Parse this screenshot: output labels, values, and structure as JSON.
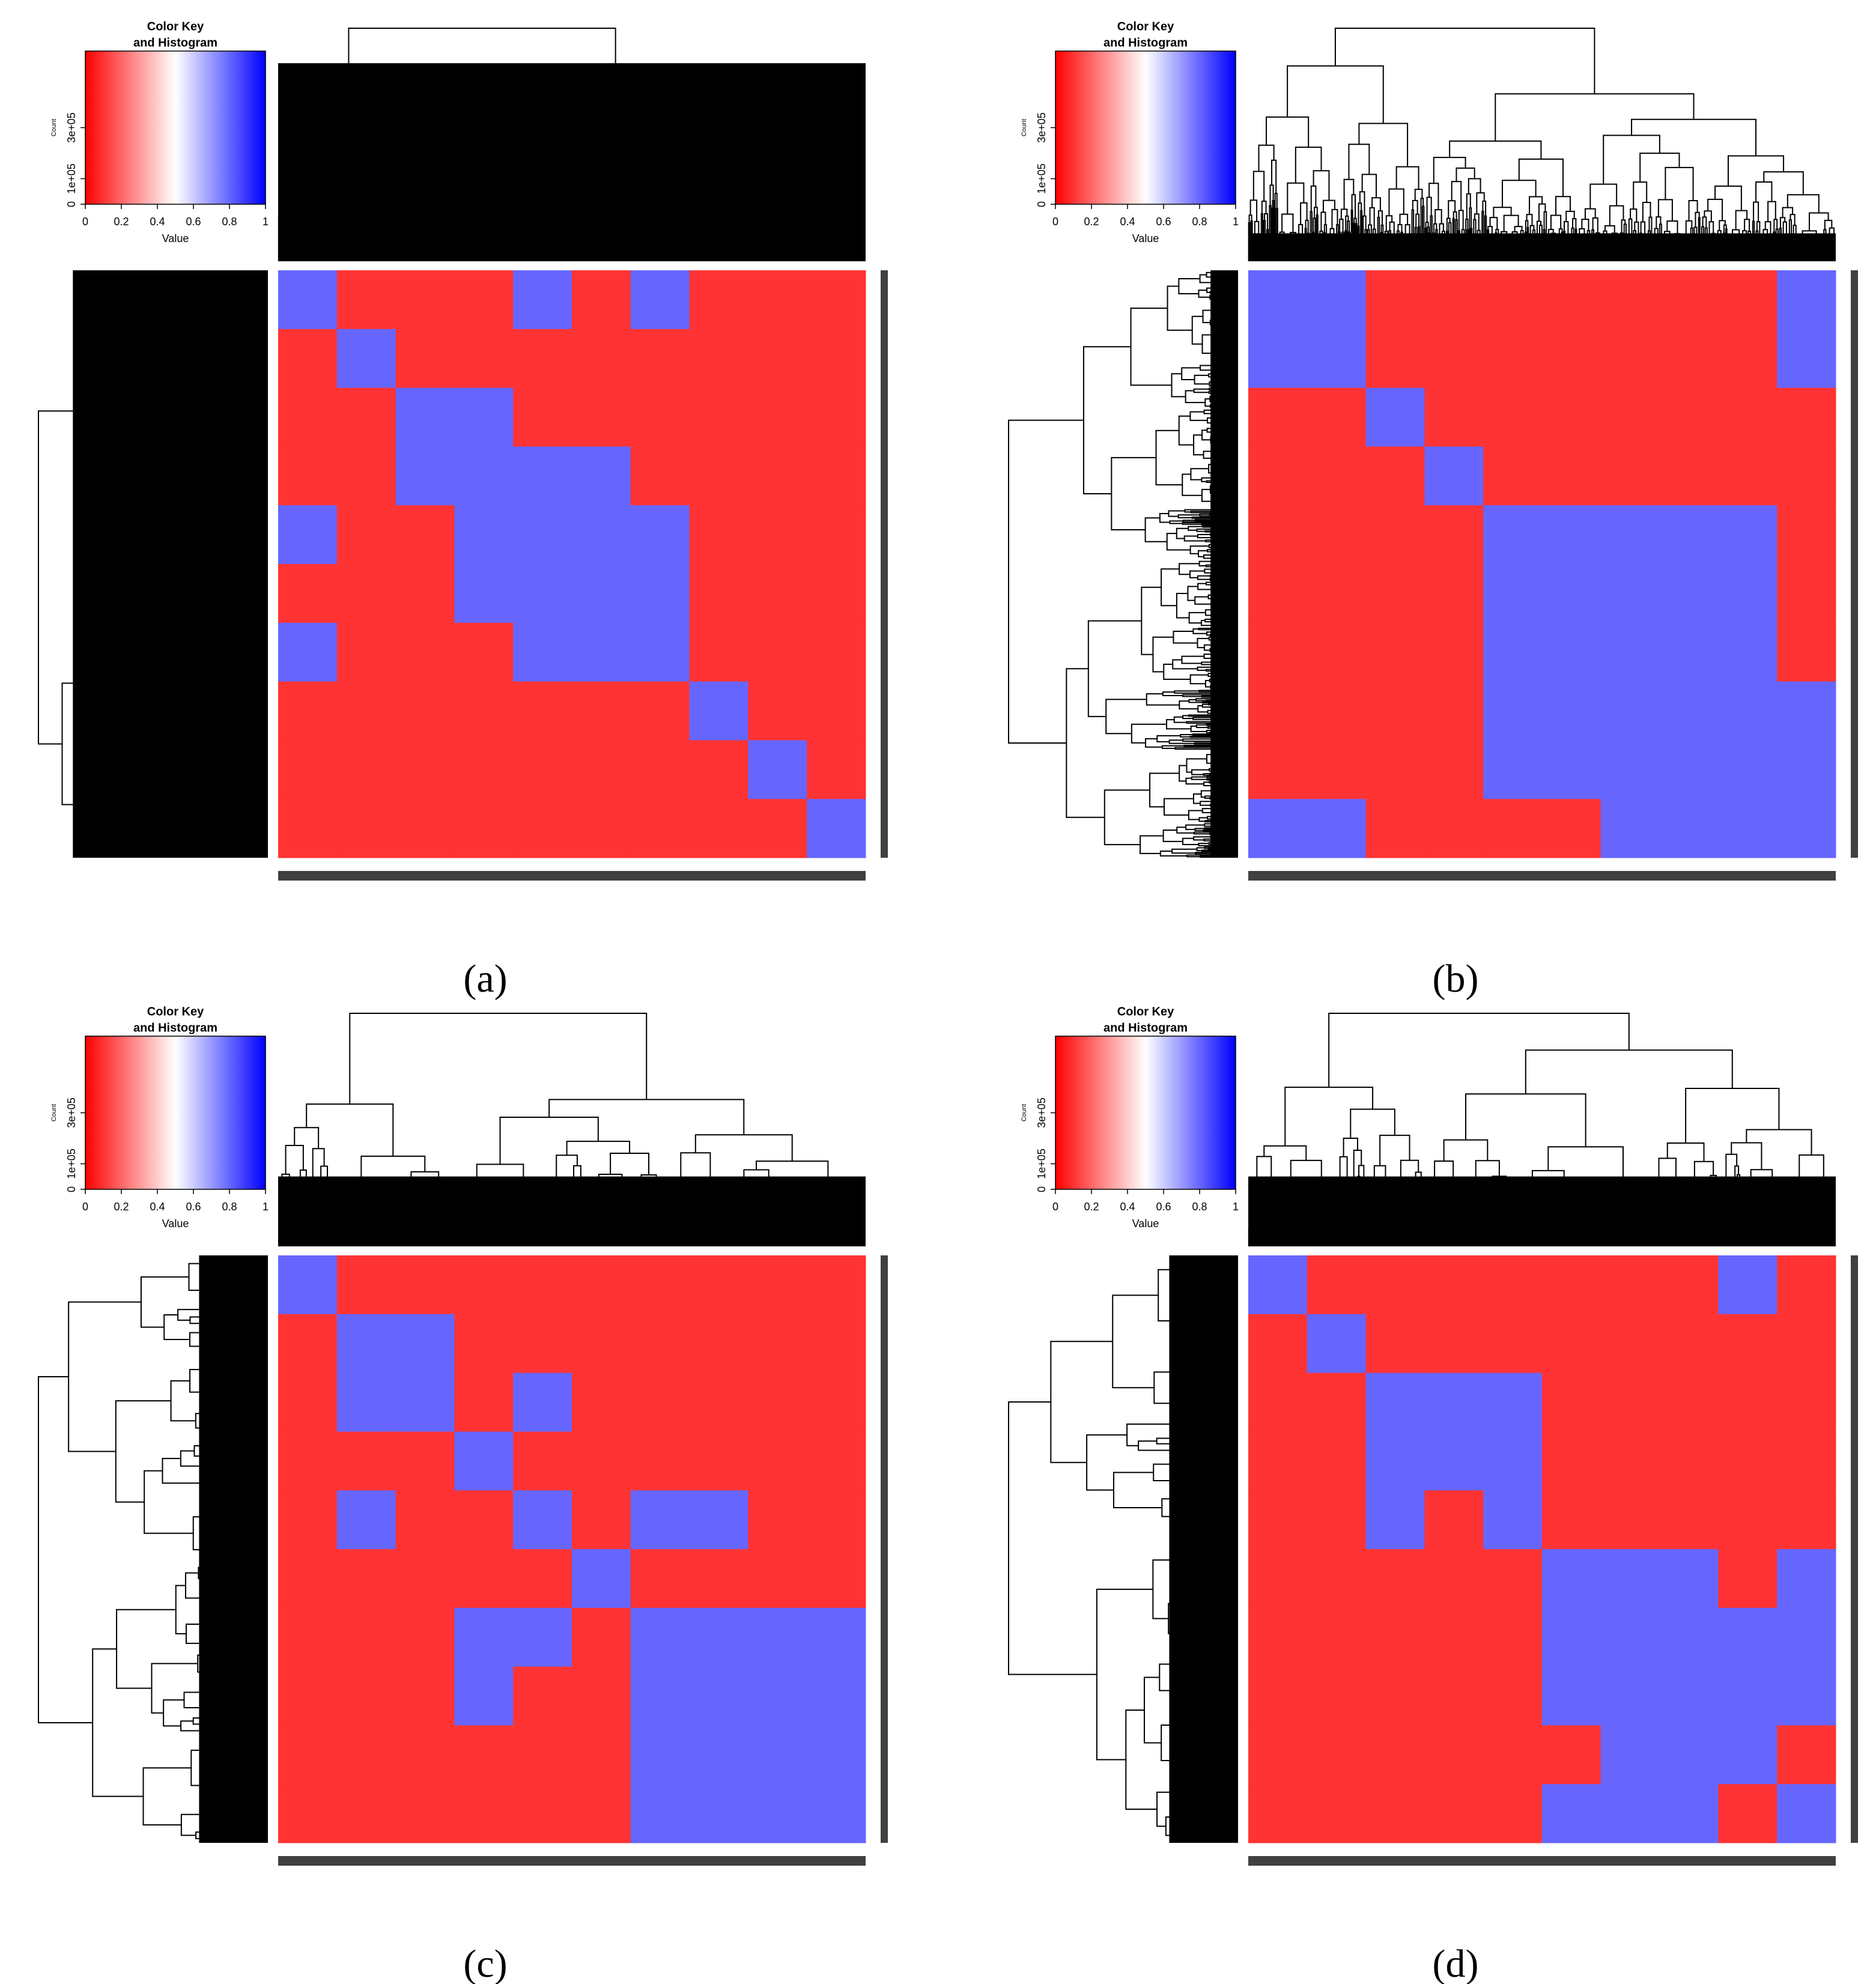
{
  "chart_data": [
    {
      "type": "heatmap",
      "label": "(a)",
      "title": [
        "Color Key",
        "and Histogram"
      ],
      "xlabel": "Value",
      "ylabel": "Count",
      "xlim": [
        0,
        1
      ],
      "xticks": [
        0,
        0.2,
        0.4,
        0.6,
        0.8,
        1
      ],
      "ylim": [
        0,
        600000
      ],
      "yticks": [
        0,
        {
          "value": 100000,
          "label": "1e+05"
        },
        {
          "value": 300000,
          "label": "3e+05"
        }
      ],
      "colors": [
        "#ff0000",
        "#ffffff",
        "#0000ff"
      ],
      "values": [
        [
          0.8,
          0.1,
          0.1,
          0.1,
          0.8,
          0.1,
          0.8,
          0.1,
          0.1,
          0.1
        ],
        [
          0.1,
          0.8,
          0.1,
          0.1,
          0.1,
          0.1,
          0.1,
          0.1,
          0.1,
          0.1
        ],
        [
          0.1,
          0.1,
          0.8,
          0.8,
          0.1,
          0.1,
          0.1,
          0.1,
          0.1,
          0.1
        ],
        [
          0.1,
          0.1,
          0.8,
          0.8,
          0.8,
          0.8,
          0.1,
          0.1,
          0.1,
          0.1
        ],
        [
          0.8,
          0.1,
          0.1,
          0.8,
          0.8,
          0.8,
          0.8,
          0.1,
          0.1,
          0.1
        ],
        [
          0.1,
          0.1,
          0.1,
          0.8,
          0.8,
          0.8,
          0.8,
          0.1,
          0.1,
          0.1
        ],
        [
          0.8,
          0.1,
          0.1,
          0.1,
          0.8,
          0.8,
          0.8,
          0.1,
          0.1,
          0.1
        ],
        [
          0.1,
          0.1,
          0.1,
          0.1,
          0.1,
          0.1,
          0.1,
          0.8,
          0.1,
          0.1
        ],
        [
          0.1,
          0.1,
          0.1,
          0.1,
          0.1,
          0.1,
          0.1,
          0.1,
          0.8,
          0.1
        ],
        [
          0.1,
          0.1,
          0.1,
          0.1,
          0.1,
          0.1,
          0.1,
          0.1,
          0.1,
          0.8
        ]
      ]
    },
    {
      "type": "heatmap",
      "label": "(b)",
      "title": [
        "Color Key",
        "and Histogram"
      ],
      "xlabel": "Value",
      "ylabel": "Count",
      "xlim": [
        0,
        1
      ],
      "xticks": [
        0,
        0.2,
        0.4,
        0.6,
        0.8,
        1
      ],
      "ylim": [
        0,
        600000
      ],
      "yticks": [
        0,
        {
          "value": 100000,
          "label": "1e+05"
        },
        {
          "value": 300000,
          "label": "3e+05"
        }
      ],
      "colors": [
        "#ff0000",
        "#ffffff",
        "#0000ff"
      ],
      "values": [
        [
          0.8,
          0.8,
          0.1,
          0.1,
          0.1,
          0.1,
          0.1,
          0.1,
          0.1,
          0.8
        ],
        [
          0.8,
          0.8,
          0.1,
          0.1,
          0.1,
          0.1,
          0.1,
          0.1,
          0.1,
          0.8
        ],
        [
          0.1,
          0.1,
          0.8,
          0.1,
          0.1,
          0.1,
          0.1,
          0.1,
          0.1,
          0.1
        ],
        [
          0.1,
          0.1,
          0.1,
          0.8,
          0.1,
          0.1,
          0.1,
          0.1,
          0.1,
          0.1
        ],
        [
          0.1,
          0.1,
          0.1,
          0.1,
          0.8,
          0.8,
          0.8,
          0.8,
          0.8,
          0.1
        ],
        [
          0.1,
          0.1,
          0.1,
          0.1,
          0.8,
          0.8,
          0.8,
          0.8,
          0.8,
          0.1
        ],
        [
          0.1,
          0.1,
          0.1,
          0.1,
          0.8,
          0.8,
          0.8,
          0.8,
          0.8,
          0.1
        ],
        [
          0.1,
          0.1,
          0.1,
          0.1,
          0.8,
          0.8,
          0.8,
          0.8,
          0.8,
          0.8
        ],
        [
          0.1,
          0.1,
          0.1,
          0.1,
          0.8,
          0.8,
          0.8,
          0.8,
          0.8,
          0.8
        ],
        [
          0.8,
          0.8,
          0.1,
          0.1,
          0.1,
          0.1,
          0.8,
          0.8,
          0.8,
          0.8
        ]
      ]
    },
    {
      "type": "heatmap",
      "label": "(c)",
      "title": [
        "Color Key",
        "and Histogram"
      ],
      "xlabel": "Value",
      "ylabel": "Count",
      "xlim": [
        0,
        1
      ],
      "xticks": [
        0,
        0.2,
        0.4,
        0.6,
        0.8,
        1
      ],
      "ylim": [
        0,
        600000
      ],
      "yticks": [
        0,
        {
          "value": 100000,
          "label": "1e+05"
        },
        {
          "value": 300000,
          "label": "3e+05"
        }
      ],
      "colors": [
        "#ff0000",
        "#ffffff",
        "#0000ff"
      ],
      "values": [
        [
          0.8,
          0.1,
          0.1,
          0.1,
          0.1,
          0.1,
          0.1,
          0.1,
          0.1,
          0.1
        ],
        [
          0.1,
          0.8,
          0.8,
          0.1,
          0.1,
          0.1,
          0.1,
          0.1,
          0.1,
          0.1
        ],
        [
          0.1,
          0.8,
          0.8,
          0.1,
          0.8,
          0.1,
          0.1,
          0.1,
          0.1,
          0.1
        ],
        [
          0.1,
          0.1,
          0.1,
          0.8,
          0.1,
          0.1,
          0.1,
          0.1,
          0.1,
          0.1
        ],
        [
          0.1,
          0.8,
          0.1,
          0.1,
          0.8,
          0.1,
          0.8,
          0.8,
          0.1,
          0.1
        ],
        [
          0.1,
          0.1,
          0.1,
          0.1,
          0.1,
          0.8,
          0.1,
          0.1,
          0.1,
          0.1
        ],
        [
          0.1,
          0.1,
          0.1,
          0.8,
          0.8,
          0.1,
          0.8,
          0.8,
          0.8,
          0.8
        ],
        [
          0.1,
          0.1,
          0.1,
          0.8,
          0.1,
          0.1,
          0.8,
          0.8,
          0.8,
          0.8
        ],
        [
          0.1,
          0.1,
          0.1,
          0.1,
          0.1,
          0.1,
          0.8,
          0.8,
          0.8,
          0.8
        ],
        [
          0.1,
          0.1,
          0.1,
          0.1,
          0.1,
          0.1,
          0.8,
          0.8,
          0.8,
          0.8
        ]
      ]
    },
    {
      "type": "heatmap",
      "label": "(d)",
      "title": [
        "Color Key",
        "and Histogram"
      ],
      "xlabel": "Value",
      "ylabel": "Count",
      "xlim": [
        0,
        1
      ],
      "xticks": [
        0,
        0.2,
        0.4,
        0.6,
        0.8,
        1
      ],
      "ylim": [
        0,
        600000
      ],
      "yticks": [
        0,
        {
          "value": 100000,
          "label": "1e+05"
        },
        {
          "value": 300000,
          "label": "3e+05"
        }
      ],
      "colors": [
        "#ff0000",
        "#ffffff",
        "#0000ff"
      ],
      "values": [
        [
          0.8,
          0.1,
          0.1,
          0.1,
          0.1,
          0.1,
          0.1,
          0.1,
          0.8,
          0.1
        ],
        [
          0.1,
          0.8,
          0.1,
          0.1,
          0.1,
          0.1,
          0.1,
          0.1,
          0.1,
          0.1
        ],
        [
          0.1,
          0.1,
          0.8,
          0.8,
          0.8,
          0.1,
          0.1,
          0.1,
          0.1,
          0.1
        ],
        [
          0.1,
          0.1,
          0.8,
          0.8,
          0.8,
          0.1,
          0.1,
          0.1,
          0.1,
          0.1
        ],
        [
          0.1,
          0.1,
          0.8,
          0.1,
          0.8,
          0.1,
          0.1,
          0.1,
          0.1,
          0.1
        ],
        [
          0.1,
          0.1,
          0.1,
          0.1,
          0.1,
          0.8,
          0.8,
          0.8,
          0.1,
          0.8
        ],
        [
          0.1,
          0.1,
          0.1,
          0.1,
          0.1,
          0.8,
          0.8,
          0.8,
          0.8,
          0.8
        ],
        [
          0.1,
          0.1,
          0.1,
          0.1,
          0.1,
          0.8,
          0.8,
          0.8,
          0.8,
          0.8
        ],
        [
          0.1,
          0.1,
          0.1,
          0.1,
          0.1,
          0.1,
          0.8,
          0.8,
          0.8,
          0.1
        ],
        [
          0.1,
          0.1,
          0.1,
          0.1,
          0.1,
          0.8,
          0.8,
          0.8,
          0.1,
          0.8
        ]
      ]
    }
  ]
}
